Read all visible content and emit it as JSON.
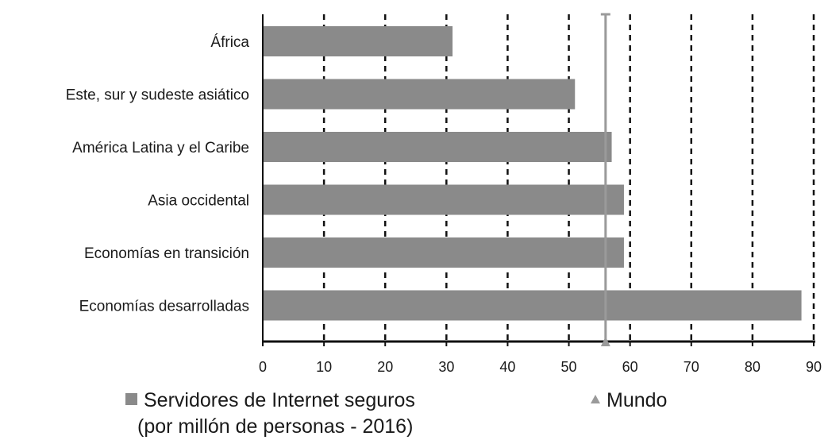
{
  "chart_data": {
    "type": "bar",
    "orientation": "horizontal",
    "categories": [
      "África",
      "Este, sur y sudeste asiático",
      "América Latina y el Caribe",
      "Asia occidental",
      "Economías en transición",
      "Economías desarrolladas"
    ],
    "series": [
      {
        "name": "Servidores de Internet seguros (por millón de personas - 2016)",
        "values": [
          31,
          51,
          57,
          59,
          59,
          88
        ],
        "color": "#8a8a8a"
      }
    ],
    "reference": {
      "name": "Mundo",
      "value": 56,
      "color": "#9a9a9a"
    },
    "xlim": [
      0,
      90
    ],
    "xticks": [
      0,
      10,
      20,
      30,
      40,
      50,
      60,
      70,
      80,
      90
    ],
    "grid": "vertical dashed",
    "legend_position": "bottom"
  },
  "legend": {
    "series_line1": "Servidores de Internet seguros",
    "series_line2": "(por millón de personas - 2016)",
    "world": "Mundo"
  }
}
